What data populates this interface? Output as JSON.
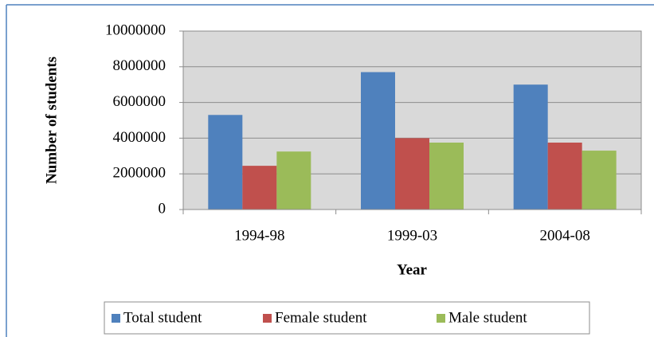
{
  "chart_data": {
    "type": "bar",
    "y_label": "Number of students",
    "x_label": "Year",
    "categories": [
      "1994-98",
      "1999-03",
      "2004-08"
    ],
    "series": [
      {
        "name": "Total student",
        "color": "#4f81bd",
        "values": [
          5300000,
          7700000,
          7000000
        ]
      },
      {
        "name": "Female student",
        "color": "#c0504d",
        "values": [
          2450000,
          4000000,
          3750000
        ]
      },
      {
        "name": "Male student",
        "color": "#9bbb59",
        "values": [
          3250000,
          3750000,
          3300000
        ]
      }
    ],
    "ylim": [
      0,
      10000000
    ],
    "yticks": [
      0,
      2000000,
      4000000,
      6000000,
      8000000,
      10000000
    ],
    "grid": true,
    "legend": "bottom"
  }
}
